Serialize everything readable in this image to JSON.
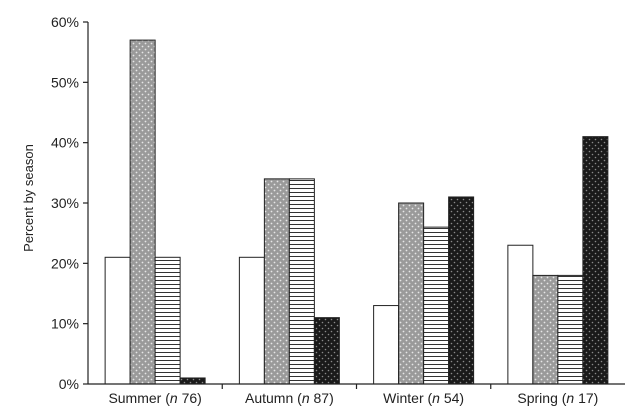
{
  "chart_data": {
    "type": "bar",
    "ylabel": "Percent by season",
    "ylim": [
      0,
      60
    ],
    "yticks": [
      0,
      10,
      20,
      30,
      40,
      50,
      60
    ],
    "ytick_suffix": "%",
    "categories": [
      {
        "name": "Summer",
        "n": "76"
      },
      {
        "name": "Autumn",
        "n": "87"
      },
      {
        "name": "Winter",
        "n": "54"
      },
      {
        "name": "Spring",
        "n": "17"
      }
    ],
    "series": [
      {
        "pattern": "white",
        "values": [
          21,
          21,
          13,
          23
        ]
      },
      {
        "pattern": "grey-dots",
        "values": [
          57,
          34,
          30,
          18
        ]
      },
      {
        "pattern": "horizontal-lines",
        "values": [
          21,
          34,
          26,
          18
        ]
      },
      {
        "pattern": "black-dots",
        "values": [
          1,
          11,
          31,
          41
        ]
      }
    ],
    "grid": false,
    "legend": "none",
    "colors": {
      "axis": "#222222",
      "grey_fill": "#9a9a9a",
      "black_fill": "#1a1a1a",
      "dot_light": "#e6e6e6",
      "dot_dark": "#8a8a8a"
    }
  }
}
